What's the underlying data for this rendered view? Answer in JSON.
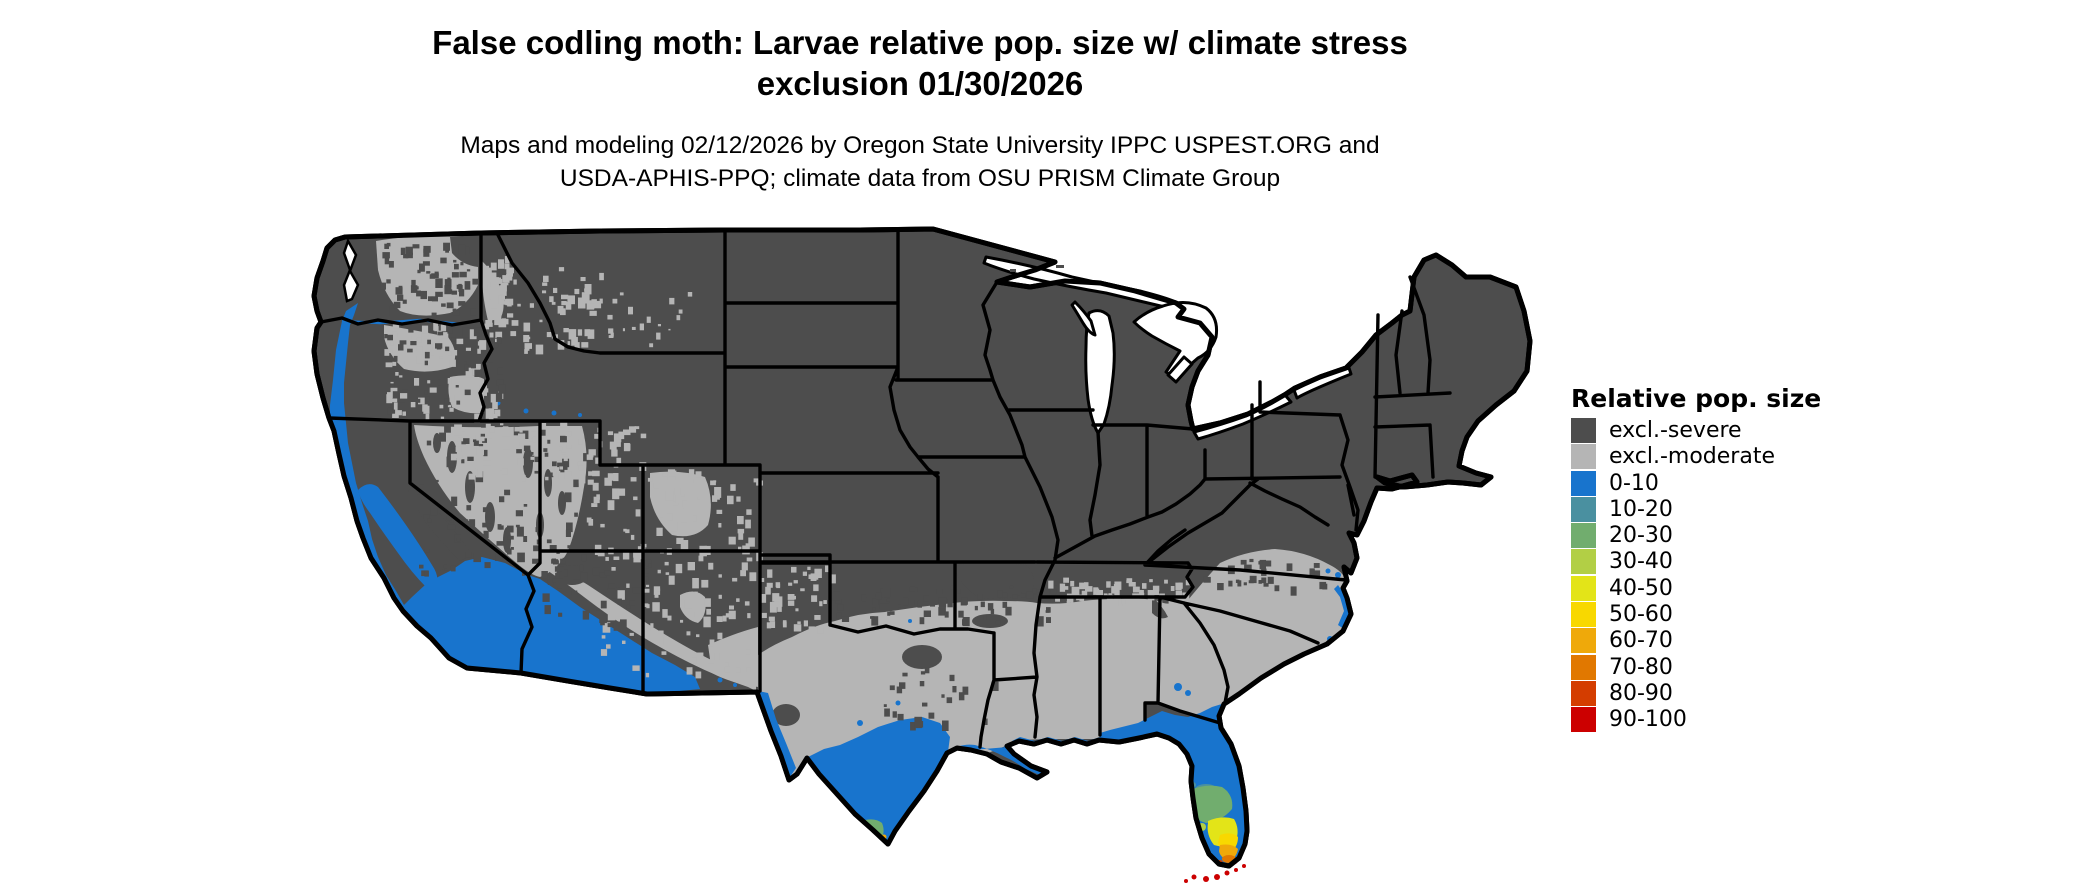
{
  "header": {
    "title_line1": "False codling moth: Larvae relative pop. size w/ climate stress",
    "title_line2": "exclusion 01/30/2026",
    "subtitle_line1": "Maps and modeling 02/12/2026 by Oregon State University IPPC USPEST.ORG and",
    "subtitle_line2": "USDA-APHIS-PPQ; climate data from OSU PRISM Climate Group"
  },
  "legend": {
    "title": "Relative pop. size",
    "items": [
      {
        "label": "excl.-severe",
        "color": "#4d4d4d"
      },
      {
        "label": "excl.-moderate",
        "color": "#b5b5b5"
      },
      {
        "label": "0-10",
        "color": "#1874cd"
      },
      {
        "label": "10-20",
        "color": "#4a90a0"
      },
      {
        "label": "20-30",
        "color": "#71ad6e"
      },
      {
        "label": "30-40",
        "color": "#b2cf45"
      },
      {
        "label": "40-50",
        "color": "#e3e418"
      },
      {
        "label": "50-60",
        "color": "#f8d800"
      },
      {
        "label": "60-70",
        "color": "#efa90a"
      },
      {
        "label": "70-80",
        "color": "#e17800"
      },
      {
        "label": "80-90",
        "color": "#d43d00"
      },
      {
        "label": "90-100",
        "color": "#cc0000"
      }
    ]
  },
  "palette": {
    "background": "#ffffff",
    "outline": "#000000",
    "water": "#ffffff",
    "severe": "#4d4d4d",
    "moderate": "#b5b5b5",
    "b0": "#1874cd",
    "b10": "#4a90a0",
    "b20": "#71ad6e",
    "b30": "#b2cf45",
    "b40": "#e3e418",
    "b50": "#f8d800",
    "b60": "#efa90a",
    "b70": "#e17800",
    "b80": "#d43d00",
    "b90": "#cc0000"
  }
}
